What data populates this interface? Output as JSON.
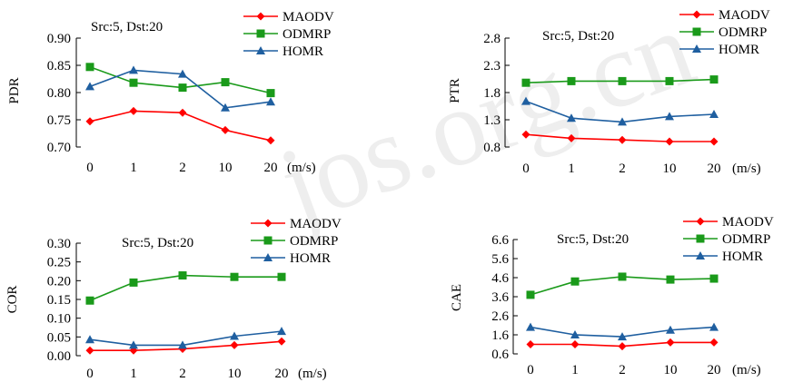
{
  "colors": {
    "MAODV": "#ff0000",
    "ODMRP": "#1a9a1a",
    "HOMR": "#1f5fa0"
  },
  "watermark": "jos.org.cn",
  "chart_data": [
    {
      "type": "line",
      "annotation": "Src:5, Dst:20",
      "ylabel": "PDR",
      "xunit": "(m/s)",
      "categories": [
        "0",
        "1",
        "2",
        "10",
        "20"
      ],
      "yticks": [
        "0.70",
        "0.75",
        "0.80",
        "0.85",
        "0.90"
      ],
      "ylim": [
        0.7,
        0.9
      ],
      "legend_position": "top-right",
      "series": [
        {
          "name": "MAODV",
          "marker": "diamond",
          "values": [
            0.747,
            0.766,
            0.763,
            0.731,
            0.712
          ]
        },
        {
          "name": "ODMRP",
          "marker": "square",
          "values": [
            0.847,
            0.818,
            0.809,
            0.819,
            0.799
          ]
        },
        {
          "name": "HOMR",
          "marker": "triangle",
          "values": [
            0.811,
            0.841,
            0.834,
            0.772,
            0.783
          ]
        }
      ]
    },
    {
      "type": "line",
      "annotation": "Src:5, Dst:20",
      "ylabel": "PTR",
      "xunit": "(m/s)",
      "categories": [
        "0",
        "1",
        "2",
        "10",
        "20"
      ],
      "yticks": [
        "0.8",
        "1.3",
        "1.8",
        "2.3",
        "2.8"
      ],
      "ylim": [
        0.8,
        2.8
      ],
      "legend_position": "top-right",
      "series": [
        {
          "name": "MAODV",
          "marker": "diamond",
          "values": [
            1.03,
            0.96,
            0.93,
            0.9,
            0.9
          ]
        },
        {
          "name": "ODMRP",
          "marker": "square",
          "values": [
            1.98,
            2.01,
            2.01,
            2.01,
            2.04
          ]
        },
        {
          "name": "HOMR",
          "marker": "triangle",
          "values": [
            1.64,
            1.33,
            1.26,
            1.36,
            1.4
          ]
        }
      ]
    },
    {
      "type": "line",
      "annotation": "Src:5, Dst:20",
      "ylabel": "COR",
      "xunit": "(m/s)",
      "categories": [
        "0",
        "1",
        "2",
        "10",
        "20"
      ],
      "yticks": [
        "0.00",
        "0.05",
        "0.10",
        "0.15",
        "0.20",
        "0.25",
        "0.30"
      ],
      "ylim": [
        0.0,
        0.3
      ],
      "legend_position": "top-right",
      "series": [
        {
          "name": "MAODV",
          "marker": "diamond",
          "values": [
            0.014,
            0.014,
            0.018,
            0.028,
            0.038
          ]
        },
        {
          "name": "ODMRP",
          "marker": "square",
          "values": [
            0.147,
            0.195,
            0.214,
            0.21,
            0.21
          ]
        },
        {
          "name": "HOMR",
          "marker": "triangle",
          "values": [
            0.043,
            0.028,
            0.028,
            0.052,
            0.065
          ]
        }
      ]
    },
    {
      "type": "line",
      "annotation": "Src:5, Dst:20",
      "ylabel": "CAE",
      "xunit": "(m/s)",
      "categories": [
        "0",
        "1",
        "2",
        "10",
        "20"
      ],
      "yticks": [
        "0.6",
        "1.6",
        "2.6",
        "3.6",
        "4.6",
        "5.6",
        "6.6"
      ],
      "ylim": [
        0.6,
        6.6
      ],
      "legend_position": "top-right",
      "series": [
        {
          "name": "MAODV",
          "marker": "diamond",
          "values": [
            1.1,
            1.1,
            1.0,
            1.2,
            1.2
          ]
        },
        {
          "name": "ODMRP",
          "marker": "square",
          "values": [
            3.7,
            4.4,
            4.65,
            4.5,
            4.55
          ]
        },
        {
          "name": "HOMR",
          "marker": "triangle",
          "values": [
            2.0,
            1.6,
            1.5,
            1.85,
            2.0
          ]
        }
      ]
    }
  ]
}
